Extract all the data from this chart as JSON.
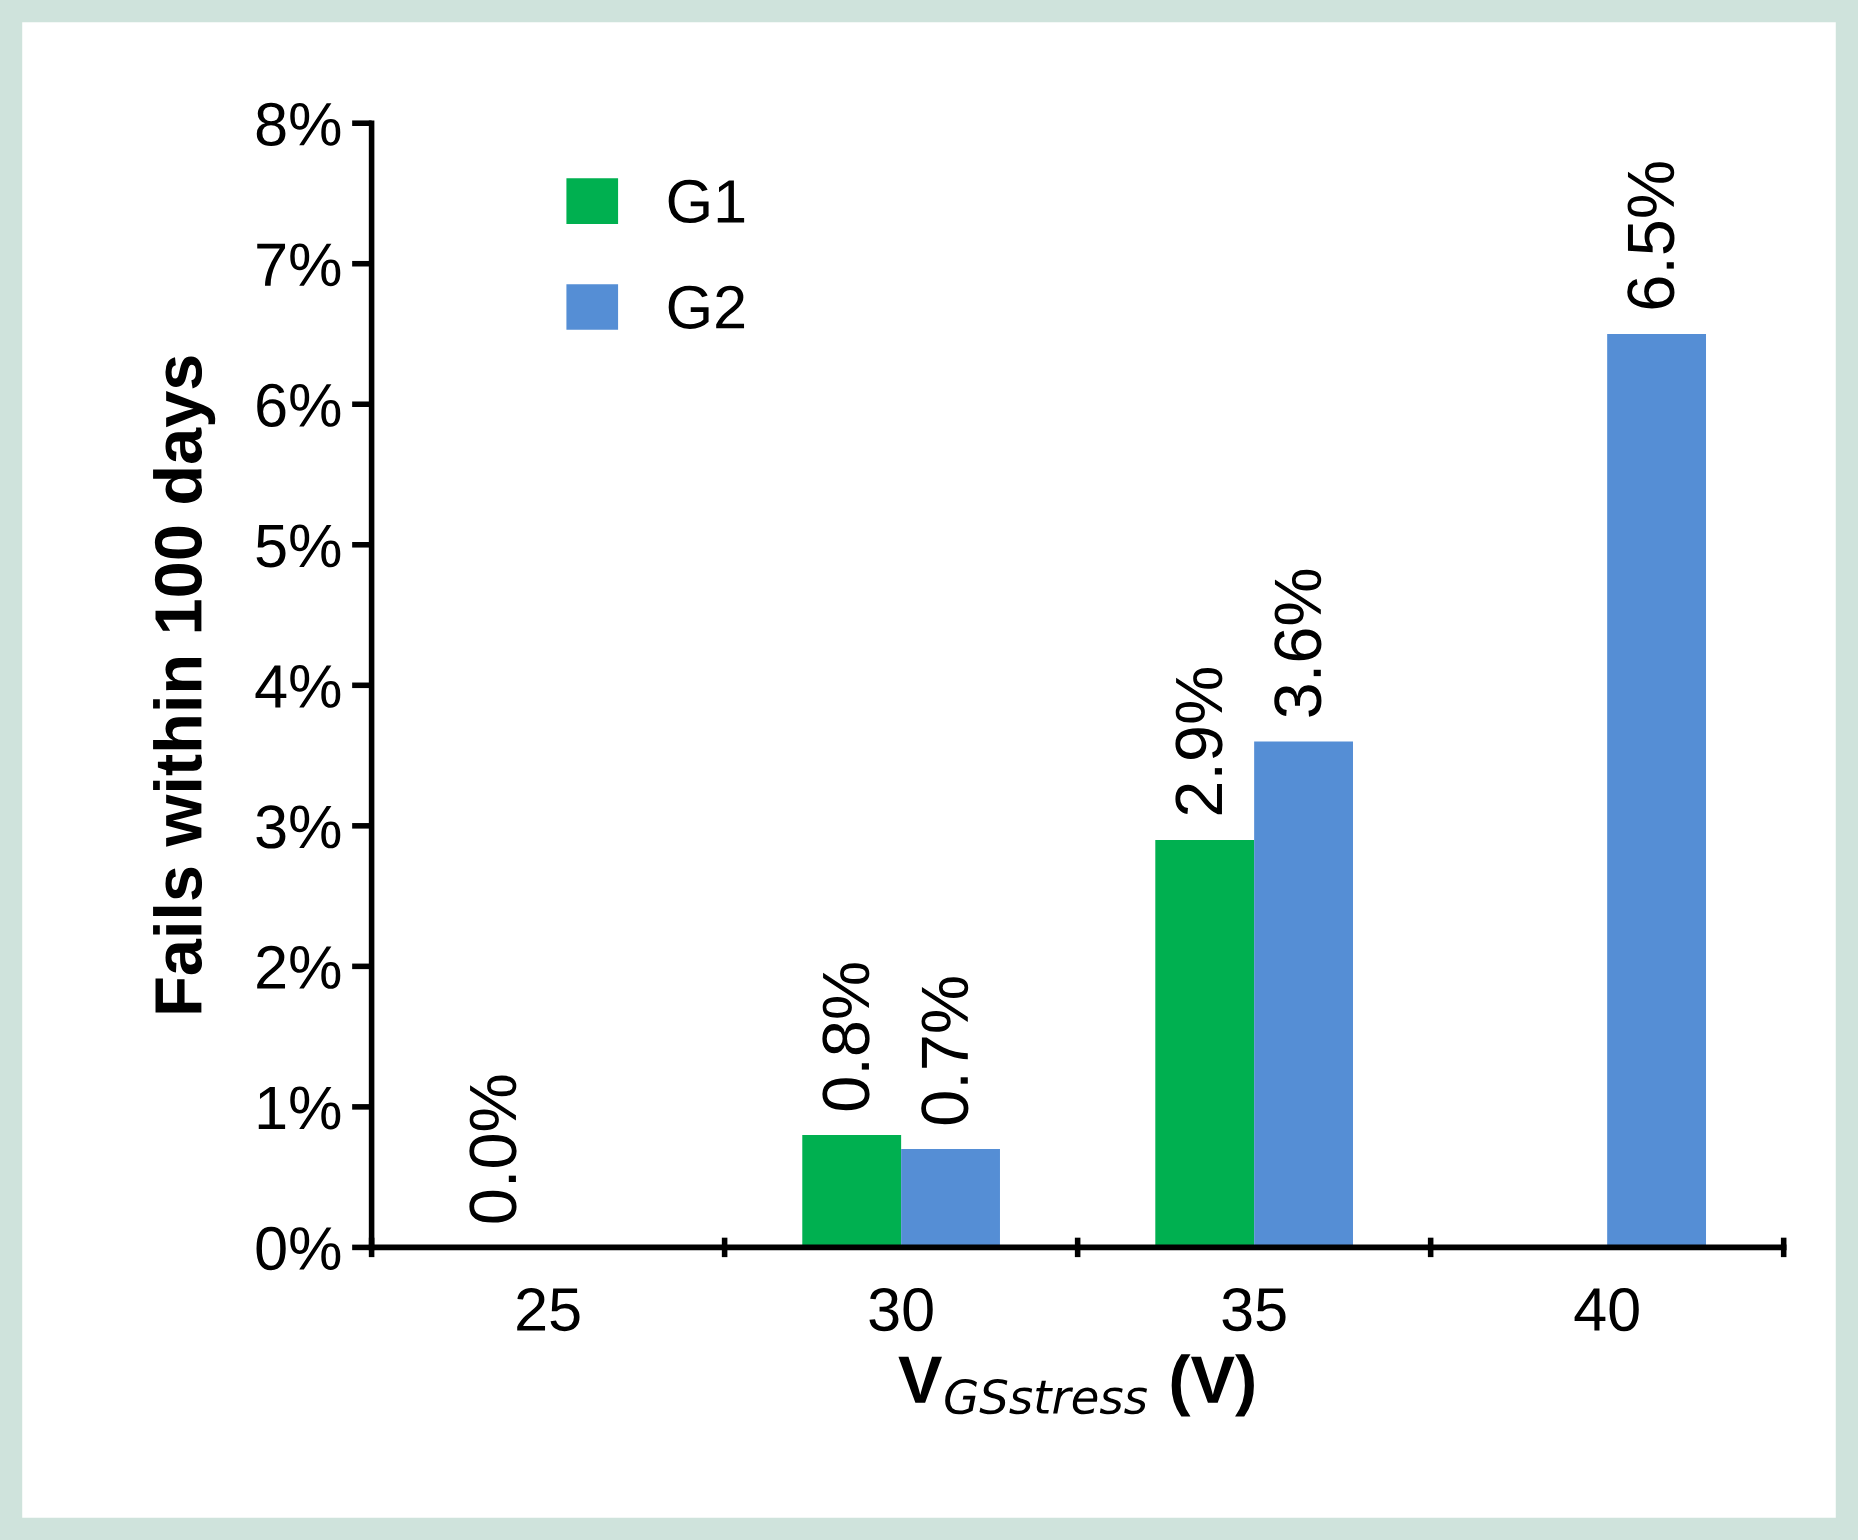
{
  "chart_data": {
    "type": "bar",
    "xlabel": "V$_{GSstress}$ (V)",
    "ylabel": "Fails within 100 days",
    "categories": [
      "25",
      "30",
      "35",
      "40"
    ],
    "series": [
      {
        "name": "G1",
        "color": "#00b050",
        "values": [
          0.0,
          0.8,
          2.9,
          null
        ],
        "value_labels": [
          "0.0%",
          "0.8%",
          "2.9%",
          null
        ]
      },
      {
        "name": "G2",
        "color": "#558ed5",
        "values": [
          null,
          0.7,
          3.6,
          6.5
        ],
        "value_labels": [
          null,
          "0.7%",
          "3.6%",
          "6.5%"
        ]
      }
    ],
    "ylim": [
      0,
      8
    ],
    "yticks": [
      {
        "value": 0,
        "label": "0%"
      },
      {
        "value": 1,
        "label": "1%"
      },
      {
        "value": 2,
        "label": "2%"
      },
      {
        "value": 3,
        "label": "3%"
      },
      {
        "value": 4,
        "label": "4%"
      },
      {
        "value": 5,
        "label": "5%"
      },
      {
        "value": 6,
        "label": "6%"
      },
      {
        "value": 7,
        "label": "7%"
      },
      {
        "value": 8,
        "label": "8%"
      }
    ],
    "grid": false,
    "legend": "top left"
  }
}
